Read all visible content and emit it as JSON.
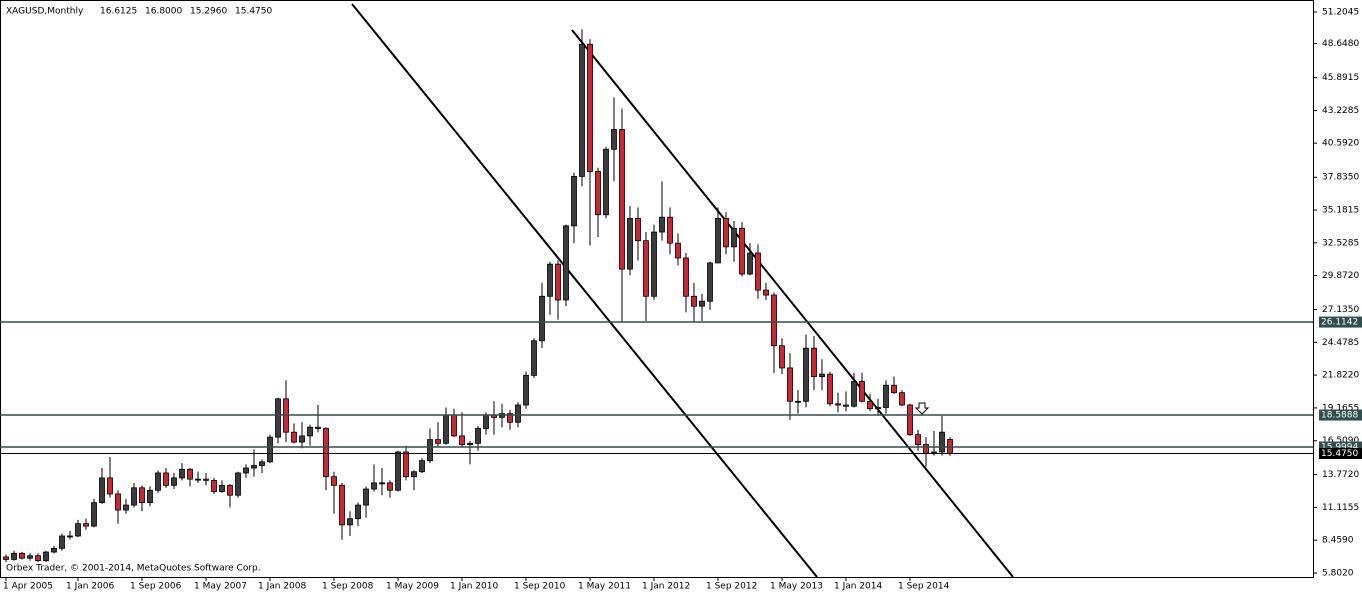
{
  "chart_data": {
    "type": "candlestick",
    "title": "XAGUSD,Monthly",
    "header_values": [
      "16.6125",
      "16.8000",
      "15.2960",
      "15.4750"
    ],
    "footer": "Orbex Trader, © 2001-2014, MetaQuotes Software Corp.",
    "up_color": "#3c3c3c",
    "down_color": "#d3252f",
    "outline_color": "#000000",
    "ylim": [
      5.48,
      52.18
    ],
    "yticks": [
      {
        "value": 51.2045,
        "label": "51.2045"
      },
      {
        "value": 48.648,
        "label": "48.6480"
      },
      {
        "value": 45.8915,
        "label": "45.8915"
      },
      {
        "value": 43.2285,
        "label": "43.2285"
      },
      {
        "value": 40.592,
        "label": "40.5920"
      },
      {
        "value": 37.835,
        "label": "37.8350"
      },
      {
        "value": 35.1815,
        "label": "35.1815"
      },
      {
        "value": 32.5285,
        "label": "32.5285"
      },
      {
        "value": 29.872,
        "label": "29.8720"
      },
      {
        "value": 27.135,
        "label": "27.1350"
      },
      {
        "value": 24.4785,
        "label": "24.4785"
      },
      {
        "value": 21.822,
        "label": "21.8220"
      },
      {
        "value": 19.1655,
        "label": "19.1655"
      },
      {
        "value": 16.509,
        "label": "16.5090"
      },
      {
        "value": 13.772,
        "label": "13.7720"
      },
      {
        "value": 11.1155,
        "label": "11.1155"
      },
      {
        "value": 8.459,
        "label": "8.4590"
      },
      {
        "value": 5.802,
        "label": "5.8020"
      }
    ],
    "levels": [
      {
        "value": 26.1142,
        "label": "26.1142",
        "color": "#2f4f4f"
      },
      {
        "value": 18.5888,
        "label": "18.5888",
        "color": "#2f4f4f"
      },
      {
        "value": 15.9994,
        "label": "15.9994",
        "color": "#2f4f4f"
      },
      {
        "value": 15.475,
        "label": "15.4750",
        "color": "#000000"
      }
    ],
    "categories": [
      "1 Apr 2005",
      null,
      null,
      null,
      null,
      null,
      null,
      null,
      null,
      "1 Jan 2006",
      null,
      null,
      null,
      null,
      null,
      null,
      null,
      "1 Sep 2006",
      null,
      null,
      null,
      null,
      null,
      null,
      null,
      "1 May 2007",
      null,
      null,
      null,
      null,
      null,
      null,
      null,
      "1 Jan 2008",
      null,
      null,
      null,
      null,
      null,
      null,
      null,
      "1 Sep 2008",
      null,
      null,
      null,
      null,
      null,
      null,
      null,
      "1 May 2009",
      null,
      null,
      null,
      null,
      null,
      null,
      null,
      "1 Jan 2010",
      null,
      null,
      null,
      null,
      null,
      null,
      null,
      "1 Sep 2010",
      null,
      null,
      null,
      null,
      null,
      null,
      null,
      "1 May 2011",
      null,
      null,
      null,
      null,
      null,
      null,
      null,
      "1 Jan 2012",
      null,
      null,
      null,
      null,
      null,
      null,
      null,
      "1 Sep 2012",
      null,
      null,
      null,
      null,
      null,
      null,
      null,
      "1 May 2013",
      null,
      null,
      null,
      null,
      null,
      null,
      null,
      "1 Jan 2014",
      null,
      null,
      null,
      null,
      null,
      null,
      null,
      "1 Sep 2014",
      null,
      null,
      null,
      null,
      null
    ],
    "ohlc": [
      [
        7.1,
        7.3,
        6.7,
        6.9
      ],
      [
        6.9,
        7.6,
        6.8,
        7.4
      ],
      [
        7.4,
        7.5,
        6.9,
        7.0
      ],
      [
        7.0,
        7.4,
        6.8,
        7.2
      ],
      [
        7.2,
        7.4,
        6.7,
        6.8
      ],
      [
        6.8,
        7.6,
        6.7,
        7.5
      ],
      [
        7.5,
        8.0,
        7.4,
        7.8
      ],
      [
        7.8,
        9.0,
        7.6,
        8.8
      ],
      [
        8.8,
        9.2,
        8.5,
        8.8
      ],
      [
        8.8,
        10.1,
        8.7,
        9.8
      ],
      [
        9.8,
        10.2,
        9.3,
        9.6
      ],
      [
        9.6,
        11.8,
        9.5,
        11.5
      ],
      [
        11.5,
        14.3,
        11.4,
        13.5
      ],
      [
        13.5,
        15.2,
        11.9,
        12.2
      ],
      [
        12.2,
        12.5,
        9.8,
        10.9
      ],
      [
        10.9,
        11.8,
        10.6,
        11.3
      ],
      [
        11.3,
        13.1,
        11.1,
        12.7
      ],
      [
        12.7,
        12.9,
        10.8,
        11.5
      ],
      [
        11.5,
        12.8,
        11.2,
        12.5
      ],
      [
        12.5,
        14.1,
        12.3,
        13.9
      ],
      [
        13.9,
        14.3,
        12.7,
        12.9
      ],
      [
        12.9,
        13.9,
        12.6,
        13.5
      ],
      [
        13.5,
        14.7,
        13.3,
        14.2
      ],
      [
        14.2,
        14.3,
        12.8,
        13.4
      ],
      [
        13.4,
        14.0,
        13.1,
        13.4
      ],
      [
        13.4,
        13.9,
        12.9,
        13.3
      ],
      [
        13.3,
        13.5,
        12.2,
        12.4
      ],
      [
        12.4,
        13.3,
        12.3,
        12.9
      ],
      [
        12.9,
        13.0,
        11.1,
        12.1
      ],
      [
        12.1,
        14.0,
        11.9,
        13.9
      ],
      [
        13.9,
        14.6,
        13.5,
        14.3
      ],
      [
        14.3,
        15.8,
        13.6,
        14.5
      ],
      [
        14.5,
        15.0,
        13.9,
        14.8
      ],
      [
        14.8,
        17.0,
        14.7,
        16.8
      ],
      [
        16.8,
        20.0,
        16.3,
        19.9
      ],
      [
        19.9,
        21.4,
        16.4,
        17.2
      ],
      [
        17.2,
        17.9,
        16.3,
        16.4
      ],
      [
        16.4,
        18.0,
        15.9,
        16.9
      ],
      [
        16.9,
        17.8,
        16.1,
        17.6
      ],
      [
        17.6,
        19.4,
        17.2,
        17.5
      ],
      [
        17.5,
        17.6,
        12.5,
        13.6
      ],
      [
        13.6,
        14.0,
        10.6,
        12.9
      ],
      [
        12.9,
        13.1,
        8.5,
        9.7
      ],
      [
        9.7,
        10.8,
        8.8,
        10.2
      ],
      [
        10.2,
        11.5,
        9.6,
        11.3
      ],
      [
        11.3,
        12.8,
        10.3,
        12.6
      ],
      [
        12.6,
        14.6,
        12.4,
        13.1
      ],
      [
        13.1,
        14.3,
        12.1,
        13.1
      ],
      [
        13.1,
        13.3,
        11.9,
        12.5
      ],
      [
        12.5,
        15.7,
        12.4,
        15.6
      ],
      [
        15.6,
        16.1,
        13.3,
        13.6
      ],
      [
        13.6,
        14.1,
        12.5,
        14.0
      ],
      [
        14.0,
        15.1,
        13.9,
        14.9
      ],
      [
        14.9,
        17.5,
        14.7,
        16.6
      ],
      [
        16.6,
        18.0,
        16.0,
        16.3
      ],
      [
        16.3,
        19.2,
        16.2,
        18.6
      ],
      [
        18.6,
        19.1,
        16.8,
        16.9
      ],
      [
        16.9,
        18.8,
        16.0,
        16.2
      ],
      [
        16.2,
        16.5,
        14.6,
        16.3
      ],
      [
        16.3,
        17.7,
        15.7,
        17.5
      ],
      [
        17.5,
        18.8,
        17.0,
        18.6
      ],
      [
        18.6,
        19.7,
        17.0,
        18.4
      ],
      [
        18.4,
        19.5,
        17.6,
        18.7
      ],
      [
        18.7,
        19.0,
        17.4,
        18.0
      ],
      [
        18.0,
        19.6,
        17.6,
        19.4
      ],
      [
        19.4,
        22.1,
        19.1,
        21.8
      ],
      [
        21.8,
        24.8,
        21.6,
        24.6
      ],
      [
        24.6,
        29.3,
        24.0,
        28.2
      ],
      [
        28.2,
        31.0,
        26.7,
        30.8
      ],
      [
        30.8,
        31.1,
        26.3,
        27.9
      ],
      [
        27.9,
        34.0,
        27.4,
        33.9
      ],
      [
        33.9,
        38.2,
        32.5,
        37.9
      ],
      [
        37.9,
        49.8,
        37.1,
        48.6
      ],
      [
        48.6,
        49.0,
        32.3,
        38.3
      ],
      [
        38.3,
        38.6,
        33.0,
        34.8
      ],
      [
        34.8,
        40.3,
        34.5,
        40.1
      ],
      [
        40.1,
        44.3,
        37.5,
        41.7
      ],
      [
        41.7,
        43.4,
        26.1,
        30.4
      ],
      [
        30.4,
        35.5,
        29.9,
        34.5
      ],
      [
        34.5,
        35.4,
        31.1,
        32.7
      ],
      [
        32.7,
        33.4,
        26.2,
        28.2
      ],
      [
        28.2,
        34.0,
        27.9,
        33.4
      ],
      [
        33.4,
        37.5,
        32.7,
        34.6
      ],
      [
        34.6,
        35.4,
        31.6,
        32.5
      ],
      [
        32.5,
        33.3,
        30.7,
        31.3
      ],
      [
        31.3,
        31.7,
        26.9,
        28.2
      ],
      [
        28.2,
        29.3,
        26.1,
        27.4
      ],
      [
        27.4,
        28.4,
        26.2,
        27.8
      ],
      [
        27.8,
        31.0,
        27.1,
        30.9
      ],
      [
        30.9,
        35.4,
        30.9,
        34.5
      ],
      [
        34.5,
        35.0,
        31.6,
        32.2
      ],
      [
        32.2,
        34.3,
        31.0,
        33.7
      ],
      [
        33.7,
        34.2,
        29.8,
        30.0
      ],
      [
        30.0,
        32.5,
        29.9,
        31.7
      ],
      [
        31.7,
        32.4,
        28.0,
        28.7
      ],
      [
        28.7,
        29.3,
        27.9,
        28.3
      ],
      [
        28.3,
        28.5,
        22.0,
        24.2
      ],
      [
        24.2,
        24.8,
        21.9,
        22.4
      ],
      [
        22.4,
        23.6,
        18.2,
        19.7
      ],
      [
        19.7,
        20.6,
        18.7,
        19.7
      ],
      [
        19.7,
        25.1,
        19.2,
        24.0
      ],
      [
        24.0,
        25.0,
        20.6,
        21.7
      ],
      [
        21.7,
        23.1,
        20.6,
        21.9
      ],
      [
        21.9,
        22.1,
        19.3,
        19.5
      ],
      [
        19.5,
        20.4,
        18.8,
        19.4
      ],
      [
        19.4,
        20.5,
        18.9,
        19.3
      ],
      [
        19.3,
        22.0,
        19.2,
        21.3
      ],
      [
        21.3,
        22.0,
        19.6,
        19.7
      ],
      [
        19.7,
        20.3,
        18.9,
        19.1
      ],
      [
        19.1,
        19.9,
        18.6,
        19.2
      ],
      [
        19.2,
        21.4,
        18.7,
        21.0
      ],
      [
        21.0,
        21.7,
        20.3,
        20.4
      ],
      [
        20.4,
        20.6,
        19.3,
        19.4
      ],
      [
        19.4,
        19.5,
        16.9,
        17.0
      ],
      [
        17.0,
        17.4,
        15.7,
        16.2
      ],
      [
        16.2,
        16.8,
        14.4,
        15.5
      ],
      [
        15.5,
        17.3,
        15.3,
        15.6
      ],
      [
        15.6,
        18.5,
        15.3,
        17.2
      ],
      [
        16.6125,
        16.8,
        15.296,
        15.475
      ]
    ]
  }
}
